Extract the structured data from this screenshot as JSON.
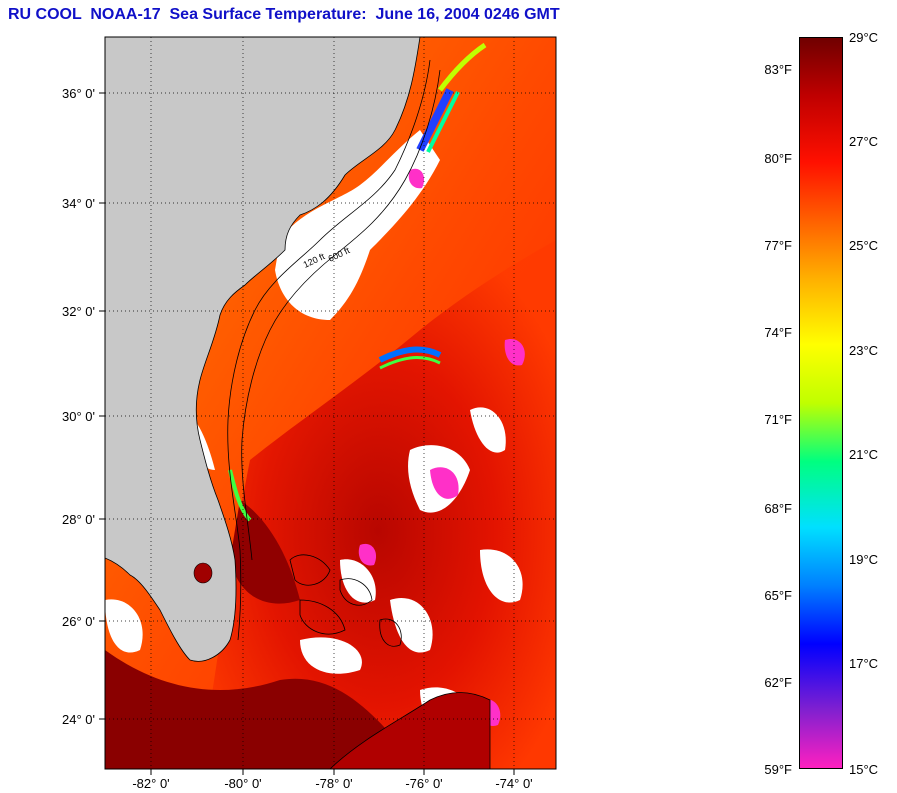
{
  "title": "RU COOL  NOAA-17  Sea Surface Temperature:  June 16, 2004 0246 GMT",
  "map": {
    "land_color": "#c8c8c8",
    "cloud_color": "#ffffff",
    "lat_labels": [
      "36° 0'",
      "34° 0'",
      "32° 0'",
      "30° 0'",
      "28° 0'",
      "26° 0'",
      "24° 0'"
    ],
    "lon_labels": [
      "-82° 0'",
      "-80° 0'",
      "-78° 0'",
      "-76° 0'",
      "-74° 0'"
    ],
    "isobath_labels": [
      "120 ft",
      "600 ft"
    ]
  },
  "colorbar": {
    "fahrenheit_labels": [
      "83°F",
      "80°F",
      "77°F",
      "74°F",
      "71°F",
      "68°F",
      "65°F",
      "62°F",
      "59°F"
    ],
    "celsius_labels": [
      "29°C",
      "27°C",
      "25°C",
      "23°C",
      "21°C",
      "19°C",
      "17°C",
      "15°C"
    ],
    "colors": [
      "#ff20c0",
      "#8020d0",
      "#0000ff",
      "#0080ff",
      "#00e0ff",
      "#00ff80",
      "#c0ff00",
      "#ffff00",
      "#ffb000",
      "#ff6000",
      "#ff1000",
      "#c00000",
      "#700000"
    ]
  }
}
